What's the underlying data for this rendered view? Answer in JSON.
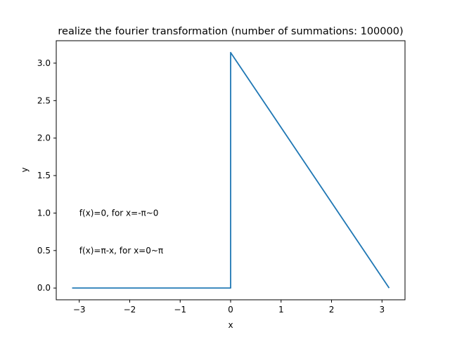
{
  "chart_data": {
    "type": "line",
    "title": "realize the fourier transformation (number of summations: 100000)",
    "xlabel": "x",
    "ylabel": "y",
    "xlim": [
      -3.456,
      3.456
    ],
    "ylim": [
      -0.157,
      3.299
    ],
    "xticks": [
      -3,
      -2,
      -1,
      0,
      1,
      2,
      3
    ],
    "xtick_labels": [
      "−3",
      "−2",
      "−1",
      "0",
      "1",
      "2",
      "3"
    ],
    "yticks": [
      0.0,
      0.5,
      1.0,
      1.5,
      2.0,
      2.5,
      3.0
    ],
    "ytick_labels": [
      "0.0",
      "0.5",
      "1.0",
      "1.5",
      "2.0",
      "2.5",
      "3.0"
    ],
    "grid": false,
    "legend": "none",
    "series": [
      {
        "color": "#1f77b4",
        "x": [
          -3.1416,
          -0.0001,
          0.0,
          0.0001,
          3.1416
        ],
        "y": [
          0.0,
          0.0,
          1.5708,
          3.1415,
          0.0
        ]
      }
    ],
    "annotations": [
      {
        "text": "f(x)=0, for x=-π~0",
        "x": -3.0,
        "y": 1.0
      },
      {
        "text": "f(x)=π-x, for x=0~π",
        "x": -3.0,
        "y": 0.5
      }
    ]
  }
}
